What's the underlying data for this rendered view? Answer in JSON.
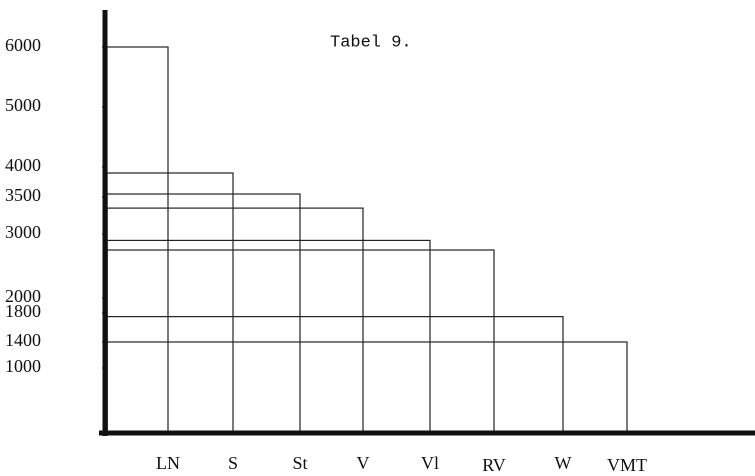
{
  "chart_data": {
    "type": "bar",
    "title": "Tabel 9.",
    "categories": [
      "LN",
      "S",
      "St",
      "V",
      "Vl",
      "RV",
      "W",
      "VMT"
    ],
    "values": [
      6000,
      3900,
      3550,
      3350,
      2900,
      2750,
      1750,
      1400
    ],
    "color": "#222222",
    "ylim": [
      0,
      6000
    ],
    "yticks": [
      6000,
      5000,
      4000,
      3500,
      3000,
      2000,
      1800,
      1400,
      1000
    ],
    "grid": false
  }
}
